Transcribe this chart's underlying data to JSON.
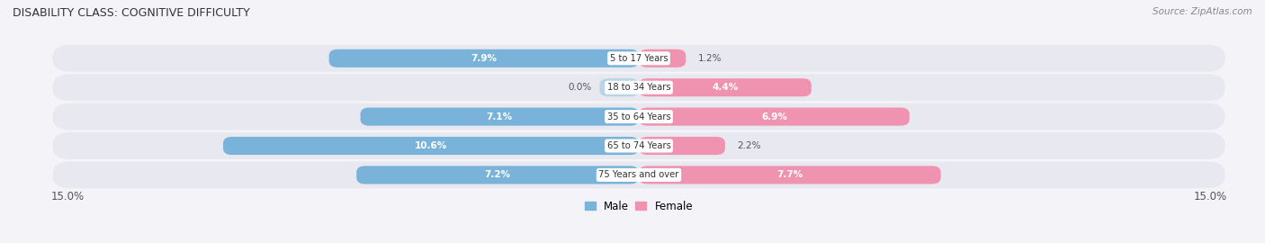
{
  "title": "DISABILITY CLASS: COGNITIVE DIFFICULTY",
  "source": "Source: ZipAtlas.com",
  "categories": [
    "5 to 17 Years",
    "18 to 34 Years",
    "35 to 64 Years",
    "65 to 74 Years",
    "75 Years and over"
  ],
  "male_values": [
    7.9,
    0.0,
    7.1,
    10.6,
    7.2
  ],
  "female_values": [
    1.2,
    4.4,
    6.9,
    2.2,
    7.7
  ],
  "max_val": 15.0,
  "male_color": "#7ab3d9",
  "female_color": "#f093b0",
  "male_color_0": "#b8d4e8",
  "row_bg_color": "#e8e8f0",
  "row_border_color": "#ffffff",
  "bar_height": 0.62,
  "fig_bg": "#f4f4f8"
}
